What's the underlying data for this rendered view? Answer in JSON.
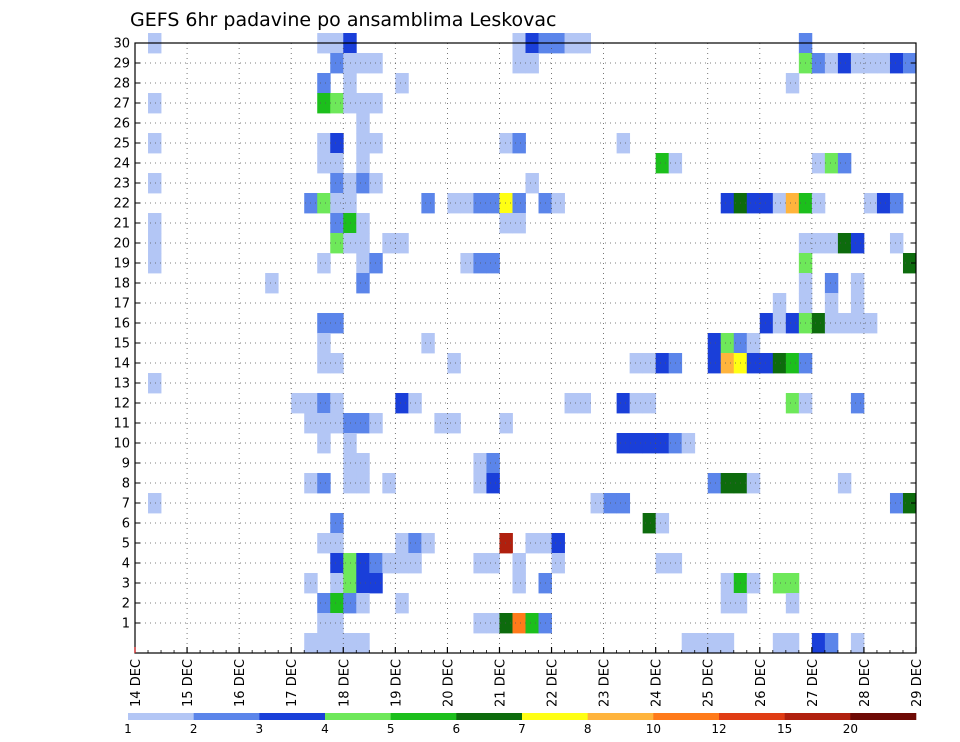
{
  "chart_data": {
    "type": "heatmap",
    "title": "GEFS 6hr padavine po ansamblima Leskovac",
    "xlabel": "",
    "ylabel": "",
    "x_tick_labels": [
      "14 DEC",
      "15 DEC",
      "16 DEC",
      "17 DEC",
      "18 DEC",
      "19 DEC",
      "20 DEC",
      "21 DEC",
      "22 DEC",
      "23 DEC",
      "24 DEC",
      "25 DEC",
      "26 DEC",
      "27 DEC",
      "28 DEC",
      "29 DEC"
    ],
    "x_range_days": [
      0,
      15
    ],
    "y_tick_labels": [
      "1",
      "2",
      "3",
      "4",
      "5",
      "6",
      "7",
      "8",
      "9",
      "10",
      "11",
      "12",
      "13",
      "14",
      "15",
      "16",
      "17",
      "18",
      "19",
      "20",
      "21",
      "22",
      "23",
      "24",
      "25",
      "26",
      "27",
      "28",
      "29",
      "30"
    ],
    "members": 30,
    "time_step_hours": 6,
    "grid": true,
    "colorbar": {
      "position": "bottom",
      "boundaries": [
        "1",
        "2",
        "3",
        "4",
        "5",
        "6",
        "7",
        "8",
        "10",
        "12",
        "15",
        "20"
      ],
      "colors": [
        "#b3c6f5",
        "#5b85ea",
        "#1a3fd9",
        "#6ee85a",
        "#1cbf1c",
        "#0d6b0d",
        "#ffff14",
        "#ffb43c",
        "#ff7a1a",
        "#e03c14",
        "#b0200e",
        "#6e0a05"
      ]
    },
    "cells": [
      [
        30,
        0.25,
        1
      ],
      [
        30,
        3.5,
        1
      ],
      [
        30,
        3.75,
        1
      ],
      [
        30,
        4.0,
        3
      ],
      [
        30,
        7.25,
        1
      ],
      [
        30,
        7.5,
        3
      ],
      [
        30,
        7.75,
        2
      ],
      [
        30,
        8.0,
        2
      ],
      [
        30,
        8.25,
        1
      ],
      [
        30,
        8.5,
        1
      ],
      [
        30,
        12.75,
        2
      ],
      [
        29,
        3.75,
        2
      ],
      [
        29,
        4.0,
        1
      ],
      [
        29,
        4.25,
        1
      ],
      [
        29,
        4.5,
        1
      ],
      [
        29,
        7.25,
        1
      ],
      [
        29,
        7.5,
        1
      ],
      [
        29,
        12.75,
        4
      ],
      [
        29,
        13.0,
        2
      ],
      [
        29,
        13.25,
        1
      ],
      [
        29,
        13.5,
        3
      ],
      [
        29,
        13.75,
        1
      ],
      [
        29,
        14.0,
        1
      ],
      [
        29,
        14.25,
        1
      ],
      [
        29,
        14.5,
        3
      ],
      [
        29,
        14.75,
        2
      ],
      [
        28,
        3.5,
        2
      ],
      [
        28,
        4.0,
        1
      ],
      [
        28,
        5.0,
        1
      ],
      [
        28,
        12.5,
        1
      ],
      [
        27,
        0.25,
        1
      ],
      [
        27,
        3.5,
        5
      ],
      [
        27,
        3.75,
        4
      ],
      [
        27,
        4.0,
        1
      ],
      [
        27,
        4.25,
        1
      ],
      [
        27,
        4.5,
        1
      ],
      [
        26,
        4.25,
        1
      ],
      [
        25,
        0.25,
        1
      ],
      [
        25,
        3.5,
        1
      ],
      [
        25,
        3.75,
        3
      ],
      [
        25,
        4.25,
        1
      ],
      [
        25,
        4.5,
        1
      ],
      [
        25,
        7.0,
        1
      ],
      [
        25,
        7.25,
        2
      ],
      [
        25,
        9.25,
        1
      ],
      [
        24,
        3.5,
        1
      ],
      [
        24,
        3.75,
        1
      ],
      [
        24,
        4.25,
        1
      ],
      [
        24,
        10.0,
        5
      ],
      [
        24,
        10.25,
        1
      ],
      [
        24,
        13.0,
        1
      ],
      [
        24,
        13.25,
        4
      ],
      [
        24,
        13.5,
        2
      ],
      [
        23,
        0.25,
        1
      ],
      [
        23,
        3.75,
        2
      ],
      [
        23,
        4.0,
        1
      ],
      [
        23,
        4.25,
        2
      ],
      [
        23,
        4.5,
        1
      ],
      [
        23,
        7.5,
        1
      ],
      [
        22,
        3.25,
        2
      ],
      [
        22,
        3.5,
        4
      ],
      [
        22,
        3.75,
        1
      ],
      [
        22,
        4.0,
        1
      ],
      [
        22,
        5.5,
        2
      ],
      [
        22,
        6.0,
        1
      ],
      [
        22,
        6.25,
        1
      ],
      [
        22,
        6.5,
        2
      ],
      [
        22,
        6.75,
        2
      ],
      [
        22,
        7.0,
        7
      ],
      [
        22,
        7.25,
        2
      ],
      [
        22,
        7.75,
        2
      ],
      [
        22,
        8.0,
        1
      ],
      [
        22,
        11.25,
        3
      ],
      [
        22,
        11.5,
        6
      ],
      [
        22,
        11.75,
        3
      ],
      [
        22,
        12.0,
        3
      ],
      [
        22,
        12.25,
        1
      ],
      [
        22,
        12.5,
        8
      ],
      [
        22,
        12.75,
        5
      ],
      [
        22,
        13.0,
        1
      ],
      [
        22,
        14.0,
        1
      ],
      [
        22,
        14.25,
        3
      ],
      [
        22,
        14.5,
        2
      ],
      [
        21,
        0.25,
        1
      ],
      [
        21,
        3.75,
        2
      ],
      [
        21,
        4.0,
        5
      ],
      [
        21,
        4.25,
        1
      ],
      [
        21,
        7.0,
        1
      ],
      [
        21,
        7.25,
        1
      ],
      [
        20,
        0.25,
        1
      ],
      [
        20,
        3.75,
        4
      ],
      [
        20,
        4.0,
        1
      ],
      [
        20,
        4.25,
        1
      ],
      [
        20,
        4.75,
        1
      ],
      [
        20,
        5.0,
        1
      ],
      [
        20,
        12.75,
        1
      ],
      [
        20,
        13.0,
        1
      ],
      [
        20,
        13.25,
        1
      ],
      [
        20,
        13.5,
        6
      ],
      [
        20,
        13.75,
        3
      ],
      [
        20,
        14.5,
        1
      ],
      [
        19,
        0.25,
        1
      ],
      [
        19,
        3.5,
        1
      ],
      [
        19,
        4.25,
        1
      ],
      [
        19,
        4.5,
        2
      ],
      [
        19,
        6.25,
        1
      ],
      [
        19,
        6.5,
        2
      ],
      [
        19,
        6.75,
        2
      ],
      [
        19,
        12.75,
        4
      ],
      [
        19,
        14.75,
        6
      ],
      [
        18,
        2.5,
        1
      ],
      [
        18,
        4.25,
        2
      ],
      [
        18,
        12.75,
        1
      ],
      [
        18,
        13.25,
        2
      ],
      [
        18,
        13.75,
        1
      ],
      [
        17,
        12.25,
        1
      ],
      [
        17,
        12.75,
        1
      ],
      [
        17,
        13.25,
        1
      ],
      [
        17,
        13.75,
        1
      ],
      [
        16,
        3.5,
        2
      ],
      [
        16,
        3.75,
        2
      ],
      [
        16,
        12.0,
        3
      ],
      [
        16,
        12.25,
        1
      ],
      [
        16,
        12.5,
        3
      ],
      [
        16,
        12.75,
        4
      ],
      [
        16,
        13.0,
        6
      ],
      [
        16,
        13.25,
        1
      ],
      [
        16,
        13.5,
        1
      ],
      [
        16,
        13.75,
        1
      ],
      [
        16,
        14.0,
        1
      ],
      [
        15,
        3.5,
        1
      ],
      [
        15,
        5.5,
        1
      ],
      [
        15,
        11.0,
        3
      ],
      [
        15,
        11.25,
        4
      ],
      [
        15,
        11.5,
        2
      ],
      [
        15,
        11.75,
        1
      ],
      [
        14,
        3.5,
        1
      ],
      [
        14,
        3.75,
        1
      ],
      [
        14,
        6.0,
        1
      ],
      [
        14,
        9.5,
        1
      ],
      [
        14,
        9.75,
        1
      ],
      [
        14,
        10.0,
        3
      ],
      [
        14,
        10.25,
        2
      ],
      [
        14,
        11.0,
        3
      ],
      [
        14,
        11.25,
        8
      ],
      [
        14,
        11.5,
        7
      ],
      [
        14,
        11.75,
        3
      ],
      [
        14,
        12.0,
        3
      ],
      [
        14,
        12.25,
        6
      ],
      [
        14,
        12.5,
        5
      ],
      [
        14,
        12.75,
        2
      ],
      [
        13,
        0.25,
        1
      ],
      [
        12,
        3.0,
        1
      ],
      [
        12,
        3.25,
        1
      ],
      [
        12,
        3.5,
        2
      ],
      [
        12,
        3.75,
        1
      ],
      [
        12,
        5.0,
        3
      ],
      [
        12,
        5.25,
        1
      ],
      [
        12,
        8.25,
        1
      ],
      [
        12,
        8.5,
        1
      ],
      [
        12,
        9.25,
        3
      ],
      [
        12,
        9.5,
        1
      ],
      [
        12,
        9.75,
        1
      ],
      [
        12,
        12.5,
        4
      ],
      [
        12,
        12.75,
        1
      ],
      [
        12,
        13.75,
        2
      ],
      [
        11,
        3.25,
        1
      ],
      [
        11,
        3.5,
        1
      ],
      [
        11,
        3.75,
        1
      ],
      [
        11,
        4.0,
        2
      ],
      [
        11,
        4.25,
        2
      ],
      [
        11,
        4.5,
        1
      ],
      [
        11,
        5.75,
        1
      ],
      [
        11,
        6.0,
        1
      ],
      [
        11,
        7.0,
        1
      ],
      [
        10,
        3.5,
        1
      ],
      [
        10,
        4.0,
        1
      ],
      [
        10,
        9.25,
        3
      ],
      [
        10,
        9.5,
        3
      ],
      [
        10,
        9.75,
        3
      ],
      [
        10,
        10.0,
        3
      ],
      [
        10,
        10.25,
        2
      ],
      [
        10,
        10.5,
        1
      ],
      [
        9,
        4.0,
        1
      ],
      [
        9,
        4.25,
        1
      ],
      [
        9,
        6.5,
        1
      ],
      [
        9,
        6.75,
        2
      ],
      [
        8,
        3.25,
        1
      ],
      [
        8,
        3.5,
        2
      ],
      [
        8,
        4.0,
        1
      ],
      [
        8,
        4.25,
        1
      ],
      [
        8,
        4.75,
        1
      ],
      [
        8,
        6.5,
        1
      ],
      [
        8,
        6.75,
        3
      ],
      [
        8,
        11.0,
        2
      ],
      [
        8,
        11.25,
        6
      ],
      [
        8,
        11.5,
        6
      ],
      [
        8,
        11.75,
        1
      ],
      [
        8,
        13.5,
        1
      ],
      [
        7,
        0.25,
        1
      ],
      [
        7,
        8.75,
        1
      ],
      [
        7,
        9.0,
        2
      ],
      [
        7,
        9.25,
        2
      ],
      [
        7,
        14.5,
        2
      ],
      [
        7,
        14.75,
        6
      ],
      [
        6,
        3.75,
        2
      ],
      [
        6,
        9.75,
        6
      ],
      [
        6,
        10.0,
        1
      ],
      [
        5,
        3.5,
        1
      ],
      [
        5,
        3.75,
        1
      ],
      [
        5,
        5.0,
        1
      ],
      [
        5,
        5.25,
        2
      ],
      [
        5,
        5.5,
        1
      ],
      [
        5,
        7.0,
        11
      ],
      [
        5,
        7.5,
        1
      ],
      [
        5,
        7.75,
        1
      ],
      [
        5,
        8.0,
        3
      ],
      [
        4,
        3.75,
        3
      ],
      [
        4,
        4.0,
        4
      ],
      [
        4,
        4.25,
        3
      ],
      [
        4,
        4.5,
        2
      ],
      [
        4,
        4.75,
        1
      ],
      [
        4,
        5.0,
        1
      ],
      [
        4,
        5.25,
        1
      ],
      [
        4,
        6.5,
        1
      ],
      [
        4,
        6.75,
        1
      ],
      [
        4,
        7.25,
        1
      ],
      [
        4,
        8.0,
        1
      ],
      [
        4,
        10.0,
        1
      ],
      [
        4,
        10.25,
        1
      ],
      [
        3,
        3.25,
        1
      ],
      [
        3,
        3.75,
        1
      ],
      [
        3,
        4.0,
        4
      ],
      [
        3,
        4.25,
        3
      ],
      [
        3,
        4.5,
        3
      ],
      [
        3,
        7.25,
        1
      ],
      [
        3,
        7.75,
        2
      ],
      [
        3,
        11.25,
        1
      ],
      [
        3,
        11.5,
        5
      ],
      [
        3,
        11.75,
        1
      ],
      [
        3,
        12.25,
        4
      ],
      [
        3,
        12.5,
        4
      ],
      [
        2,
        3.5,
        2
      ],
      [
        2,
        3.75,
        5
      ],
      [
        2,
        4.0,
        2
      ],
      [
        2,
        4.25,
        1
      ],
      [
        2,
        5.0,
        1
      ],
      [
        2,
        11.25,
        1
      ],
      [
        2,
        11.5,
        1
      ],
      [
        2,
        12.5,
        1
      ],
      [
        1,
        3.5,
        1
      ],
      [
        1,
        3.75,
        1
      ],
      [
        1,
        6.5,
        1
      ],
      [
        1,
        6.75,
        1
      ],
      [
        1,
        7.0,
        6
      ],
      [
        1,
        7.25,
        9
      ],
      [
        1,
        7.5,
        5
      ],
      [
        1,
        7.75,
        2
      ],
      [
        0,
        3.25,
        1
      ],
      [
        0,
        3.5,
        1
      ],
      [
        0,
        3.75,
        1
      ],
      [
        0,
        4.0,
        1
      ],
      [
        0,
        4.25,
        1
      ],
      [
        0,
        10.5,
        1
      ],
      [
        0,
        10.75,
        1
      ],
      [
        0,
        11.0,
        1
      ],
      [
        0,
        11.25,
        1
      ],
      [
        0,
        12.25,
        1
      ],
      [
        0,
        12.5,
        1
      ],
      [
        0,
        13.0,
        3
      ],
      [
        0,
        13.25,
        2
      ],
      [
        0,
        13.75,
        1
      ]
    ]
  }
}
